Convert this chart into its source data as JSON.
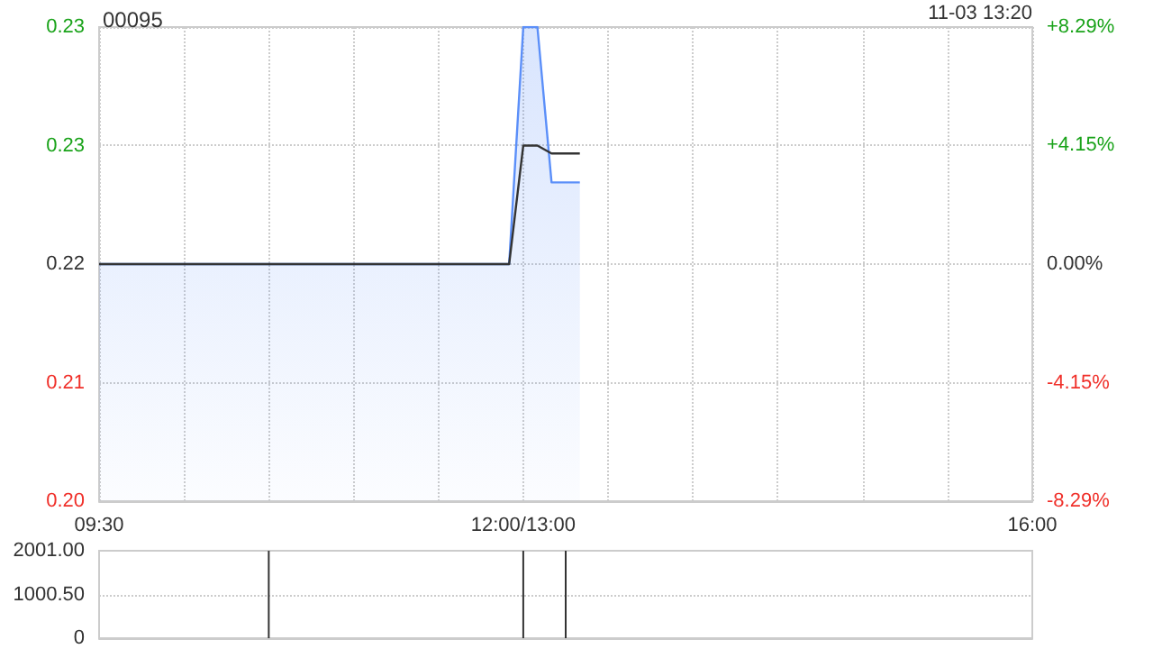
{
  "chart_data": [
    {
      "type": "area",
      "title": "00095",
      "annotations": [
        "11-03 13:20"
      ],
      "categories": [
        "09:30",
        null,
        null,
        null,
        null,
        null,
        null,
        null,
        null,
        null,
        null,
        null,
        null,
        null,
        null,
        null,
        null,
        null,
        null,
        null,
        null,
        null,
        null,
        null,
        null,
        null,
        null,
        null,
        null,
        null,
        "12:00/13:00",
        null,
        null,
        null,
        null,
        null,
        null,
        null,
        null,
        null,
        null,
        null,
        null,
        null,
        null,
        null,
        null,
        null,
        null,
        null,
        null,
        null,
        null,
        null,
        null,
        null,
        null,
        null,
        null,
        null,
        null,
        null,
        null,
        null,
        null,
        null,
        "16:00"
      ],
      "ylim": [
        0.199,
        0.235
      ],
      "yticks": [
        {
          "value": 0.199,
          "label": "0.20"
        },
        {
          "value": 0.208,
          "label": "0.21"
        },
        {
          "value": 0.217,
          "label": "0.22"
        },
        {
          "value": 0.226,
          "label": "0.23"
        },
        {
          "value": 0.235,
          "label": "0.23"
        }
      ],
      "y2lim": [
        -8.29,
        8.29
      ],
      "y2ticks": [
        {
          "value": -8.29,
          "label": "-8.29%"
        },
        {
          "value": -4.15,
          "label": "-4.15%"
        },
        {
          "value": 0,
          "label": "0.00%"
        },
        {
          "value": 4.15,
          "label": "+4.15%"
        },
        {
          "value": 8.29,
          "label": "+8.29%"
        }
      ],
      "grid": true,
      "marker": "none",
      "series": [
        {
          "color": "#5b8ff9",
          "values": [
            0.217,
            0.217,
            0.217,
            0.217,
            0.217,
            0.217,
            0.217,
            0.217,
            0.217,
            0.217,
            0.217,
            0.217,
            0.217,
            0.217,
            0.217,
            0.217,
            0.217,
            0.217,
            0.217,
            0.217,
            0.217,
            0.217,
            0.217,
            0.217,
            0.217,
            0.217,
            0.217,
            0.217,
            0.217,
            0.217,
            0.235,
            0.235,
            0.2232,
            0.2232,
            0.2232,
            null,
            null,
            null,
            null,
            null,
            null,
            null,
            null,
            null,
            null,
            null,
            null,
            null,
            null,
            null,
            null,
            null,
            null,
            null,
            null,
            null,
            null,
            null,
            null,
            null,
            null,
            null,
            null,
            null,
            null,
            null,
            null
          ]
        },
        {
          "type": "line",
          "color": "#333333",
          "values": [
            0.217,
            0.217,
            0.217,
            0.217,
            0.217,
            0.217,
            0.217,
            0.217,
            0.217,
            0.217,
            0.217,
            0.217,
            0.217,
            0.217,
            0.217,
            0.217,
            0.217,
            0.217,
            0.217,
            0.217,
            0.217,
            0.217,
            0.217,
            0.217,
            0.217,
            0.217,
            0.217,
            0.217,
            0.217,
            0.217,
            0.226,
            0.226,
            0.2254,
            0.2254,
            0.2254,
            null,
            null,
            null,
            null,
            null,
            null,
            null,
            null,
            null,
            null,
            null,
            null,
            null,
            null,
            null,
            null,
            null,
            null,
            null,
            null,
            null,
            null,
            null,
            null,
            null,
            null,
            null,
            null,
            null,
            null,
            null,
            null
          ]
        }
      ]
    },
    {
      "type": "bar",
      "color": "#333333",
      "categories": [
        null,
        null,
        null,
        null,
        null,
        null,
        null,
        null,
        null,
        null,
        null,
        null,
        null,
        null,
        null,
        null,
        null,
        null,
        null,
        null,
        null,
        null,
        null,
        null,
        null,
        null,
        null,
        null,
        null,
        null,
        null,
        null,
        null,
        null,
        null,
        null,
        null,
        null,
        null,
        null,
        null,
        null,
        null,
        null,
        null,
        null,
        null,
        null,
        null,
        null,
        null,
        null,
        null,
        null,
        null,
        null,
        null,
        null,
        null,
        null,
        null,
        null,
        null,
        null,
        null,
        null,
        null
      ],
      "values": [
        null,
        null,
        null,
        null,
        null,
        null,
        null,
        null,
        null,
        null,
        null,
        null,
        2000,
        null,
        null,
        null,
        null,
        null,
        null,
        null,
        null,
        null,
        null,
        null,
        null,
        null,
        null,
        null,
        null,
        null,
        2000,
        null,
        null,
        2000,
        null,
        null,
        null,
        null,
        null,
        null,
        null,
        null,
        null,
        null,
        null,
        null,
        null,
        null,
        null,
        null,
        null,
        null,
        null,
        null,
        null,
        null,
        null,
        null,
        null,
        null,
        null,
        null,
        null,
        null,
        null,
        null,
        null
      ],
      "ylim": [
        0,
        2001
      ],
      "yticks": [
        0,
        {
          "value": 1000.5,
          "label": "1000.50"
        },
        {
          "value": 2001,
          "label": "2001.00"
        }
      ],
      "grid": "y",
      "tick_labels": "y"
    }
  ]
}
